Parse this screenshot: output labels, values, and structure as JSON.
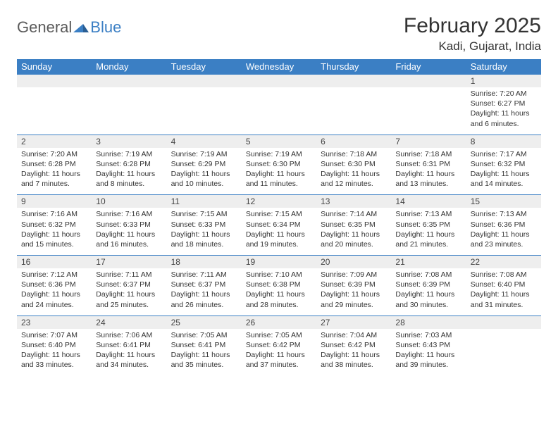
{
  "logo": {
    "word1": "General",
    "word2": "Blue"
  },
  "title": "February 2025",
  "location": "Kadi, Gujarat, India",
  "colors": {
    "brand_blue": "#3b7fc4",
    "header_text": "#ffffff",
    "grey_band": "#eeeeee",
    "text": "#333333",
    "logo_grey": "#5a5a5a",
    "background": "#ffffff"
  },
  "day_headers": [
    "Sunday",
    "Monday",
    "Tuesday",
    "Wednesday",
    "Thursday",
    "Friday",
    "Saturday"
  ],
  "weeks": [
    [
      null,
      null,
      null,
      null,
      null,
      null,
      {
        "n": "1",
        "sr": "Sunrise: 7:20 AM",
        "ss": "Sunset: 6:27 PM",
        "d1": "Daylight: 11 hours",
        "d2": "and 6 minutes."
      }
    ],
    [
      {
        "n": "2",
        "sr": "Sunrise: 7:20 AM",
        "ss": "Sunset: 6:28 PM",
        "d1": "Daylight: 11 hours",
        "d2": "and 7 minutes."
      },
      {
        "n": "3",
        "sr": "Sunrise: 7:19 AM",
        "ss": "Sunset: 6:28 PM",
        "d1": "Daylight: 11 hours",
        "d2": "and 8 minutes."
      },
      {
        "n": "4",
        "sr": "Sunrise: 7:19 AM",
        "ss": "Sunset: 6:29 PM",
        "d1": "Daylight: 11 hours",
        "d2": "and 10 minutes."
      },
      {
        "n": "5",
        "sr": "Sunrise: 7:19 AM",
        "ss": "Sunset: 6:30 PM",
        "d1": "Daylight: 11 hours",
        "d2": "and 11 minutes."
      },
      {
        "n": "6",
        "sr": "Sunrise: 7:18 AM",
        "ss": "Sunset: 6:30 PM",
        "d1": "Daylight: 11 hours",
        "d2": "and 12 minutes."
      },
      {
        "n": "7",
        "sr": "Sunrise: 7:18 AM",
        "ss": "Sunset: 6:31 PM",
        "d1": "Daylight: 11 hours",
        "d2": "and 13 minutes."
      },
      {
        "n": "8",
        "sr": "Sunrise: 7:17 AM",
        "ss": "Sunset: 6:32 PM",
        "d1": "Daylight: 11 hours",
        "d2": "and 14 minutes."
      }
    ],
    [
      {
        "n": "9",
        "sr": "Sunrise: 7:16 AM",
        "ss": "Sunset: 6:32 PM",
        "d1": "Daylight: 11 hours",
        "d2": "and 15 minutes."
      },
      {
        "n": "10",
        "sr": "Sunrise: 7:16 AM",
        "ss": "Sunset: 6:33 PM",
        "d1": "Daylight: 11 hours",
        "d2": "and 16 minutes."
      },
      {
        "n": "11",
        "sr": "Sunrise: 7:15 AM",
        "ss": "Sunset: 6:33 PM",
        "d1": "Daylight: 11 hours",
        "d2": "and 18 minutes."
      },
      {
        "n": "12",
        "sr": "Sunrise: 7:15 AM",
        "ss": "Sunset: 6:34 PM",
        "d1": "Daylight: 11 hours",
        "d2": "and 19 minutes."
      },
      {
        "n": "13",
        "sr": "Sunrise: 7:14 AM",
        "ss": "Sunset: 6:35 PM",
        "d1": "Daylight: 11 hours",
        "d2": "and 20 minutes."
      },
      {
        "n": "14",
        "sr": "Sunrise: 7:13 AM",
        "ss": "Sunset: 6:35 PM",
        "d1": "Daylight: 11 hours",
        "d2": "and 21 minutes."
      },
      {
        "n": "15",
        "sr": "Sunrise: 7:13 AM",
        "ss": "Sunset: 6:36 PM",
        "d1": "Daylight: 11 hours",
        "d2": "and 23 minutes."
      }
    ],
    [
      {
        "n": "16",
        "sr": "Sunrise: 7:12 AM",
        "ss": "Sunset: 6:36 PM",
        "d1": "Daylight: 11 hours",
        "d2": "and 24 minutes."
      },
      {
        "n": "17",
        "sr": "Sunrise: 7:11 AM",
        "ss": "Sunset: 6:37 PM",
        "d1": "Daylight: 11 hours",
        "d2": "and 25 minutes."
      },
      {
        "n": "18",
        "sr": "Sunrise: 7:11 AM",
        "ss": "Sunset: 6:37 PM",
        "d1": "Daylight: 11 hours",
        "d2": "and 26 minutes."
      },
      {
        "n": "19",
        "sr": "Sunrise: 7:10 AM",
        "ss": "Sunset: 6:38 PM",
        "d1": "Daylight: 11 hours",
        "d2": "and 28 minutes."
      },
      {
        "n": "20",
        "sr": "Sunrise: 7:09 AM",
        "ss": "Sunset: 6:39 PM",
        "d1": "Daylight: 11 hours",
        "d2": "and 29 minutes."
      },
      {
        "n": "21",
        "sr": "Sunrise: 7:08 AM",
        "ss": "Sunset: 6:39 PM",
        "d1": "Daylight: 11 hours",
        "d2": "and 30 minutes."
      },
      {
        "n": "22",
        "sr": "Sunrise: 7:08 AM",
        "ss": "Sunset: 6:40 PM",
        "d1": "Daylight: 11 hours",
        "d2": "and 31 minutes."
      }
    ],
    [
      {
        "n": "23",
        "sr": "Sunrise: 7:07 AM",
        "ss": "Sunset: 6:40 PM",
        "d1": "Daylight: 11 hours",
        "d2": "and 33 minutes."
      },
      {
        "n": "24",
        "sr": "Sunrise: 7:06 AM",
        "ss": "Sunset: 6:41 PM",
        "d1": "Daylight: 11 hours",
        "d2": "and 34 minutes."
      },
      {
        "n": "25",
        "sr": "Sunrise: 7:05 AM",
        "ss": "Sunset: 6:41 PM",
        "d1": "Daylight: 11 hours",
        "d2": "and 35 minutes."
      },
      {
        "n": "26",
        "sr": "Sunrise: 7:05 AM",
        "ss": "Sunset: 6:42 PM",
        "d1": "Daylight: 11 hours",
        "d2": "and 37 minutes."
      },
      {
        "n": "27",
        "sr": "Sunrise: 7:04 AM",
        "ss": "Sunset: 6:42 PM",
        "d1": "Daylight: 11 hours",
        "d2": "and 38 minutes."
      },
      {
        "n": "28",
        "sr": "Sunrise: 7:03 AM",
        "ss": "Sunset: 6:43 PM",
        "d1": "Daylight: 11 hours",
        "d2": "and 39 minutes."
      },
      null
    ]
  ]
}
